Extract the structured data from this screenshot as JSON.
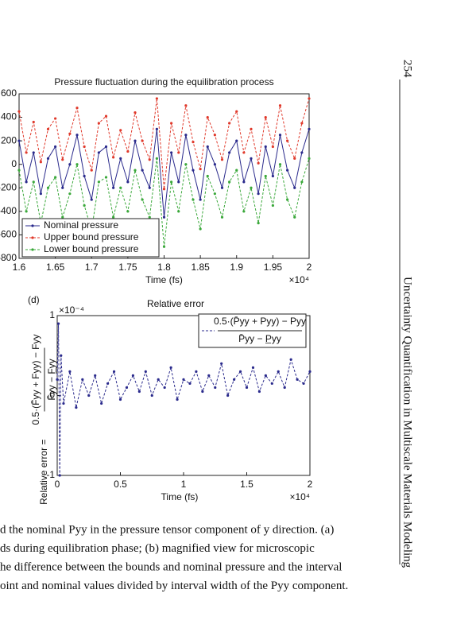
{
  "page_number": "254",
  "running_head": "Uncertainty Quantification in Multiscale Materials Modeling",
  "caption_lines": [
    "d the nominal Pyy in the pressure tensor component of y direction. (a)",
    "ds during equilibration phase; (b) magnified view for microscopic",
    "he difference between the bounds and nominal pressure and the interval",
    "oint and nominal values divided by interval width of the Pyy component."
  ],
  "chart_data": [
    {
      "type": "line",
      "title": "Pressure fluctuation during the equilibration process",
      "xlabel": "Time (fs)",
      "x_multiplier": "×10⁴",
      "x": [
        1.6,
        1.61,
        1.62,
        1.63,
        1.64,
        1.65,
        1.66,
        1.67,
        1.68,
        1.69,
        1.7,
        1.71,
        1.72,
        1.73,
        1.74,
        1.75,
        1.76,
        1.77,
        1.78,
        1.79,
        1.8,
        1.81,
        1.82,
        1.83,
        1.84,
        1.85,
        1.86,
        1.87,
        1.88,
        1.89,
        1.9,
        1.91,
        1.92,
        1.93,
        1.94,
        1.95,
        1.96,
        1.97,
        1.98,
        1.99,
        2.0
      ],
      "series": [
        {
          "name": "Nominal pressure",
          "color": "#2a2a8c",
          "dash": false,
          "values": [
            200,
            -150,
            100,
            -250,
            50,
            150,
            -200,
            0,
            250,
            -100,
            -300,
            100,
            150,
            -200,
            50,
            -150,
            200,
            -50,
            -200,
            300,
            -450,
            100,
            -150,
            250,
            -50,
            -300,
            150,
            0,
            -200,
            100,
            200,
            -150,
            50,
            -250,
            150,
            -100,
            250,
            -50,
            -200,
            100,
            300
          ]
        },
        {
          "name": "Upper bound pressure",
          "color": "#e0392b",
          "dash": true,
          "values": [
            450,
            100,
            360,
            20,
            300,
            390,
            40,
            260,
            480,
            150,
            -50,
            350,
            410,
            60,
            290,
            110,
            440,
            200,
            40,
            560,
            -210,
            350,
            100,
            500,
            190,
            -40,
            400,
            250,
            40,
            350,
            450,
            100,
            300,
            10,
            400,
            150,
            500,
            200,
            50,
            350,
            560
          ]
        },
        {
          "name": "Lower bound pressure",
          "color": "#3aa83a",
          "dash": true,
          "values": [
            -50,
            -400,
            -150,
            -500,
            -200,
            -110,
            -450,
            -250,
            0,
            -350,
            -560,
            -150,
            -110,
            -450,
            -200,
            -400,
            -50,
            -300,
            -450,
            50,
            -700,
            -150,
            -400,
            0,
            -300,
            -550,
            -100,
            -250,
            -450,
            -150,
            -50,
            -400,
            -200,
            -500,
            -100,
            -350,
            0,
            -300,
            -450,
            -150,
            50
          ]
        }
      ],
      "xlim": [
        1.6,
        2
      ],
      "xticks": [
        1.6,
        1.65,
        1.7,
        1.75,
        1.8,
        1.85,
        1.9,
        1.95,
        2
      ],
      "ylim": [
        -800,
        600
      ],
      "yticks": [
        -800,
        -600,
        -400,
        -200,
        0,
        200,
        400,
        600
      ],
      "legend": "lower left"
    },
    {
      "type": "line",
      "panel_label": "(d)",
      "title": "Relative error",
      "xlabel": "Time (fs)",
      "x_multiplier": "×10⁴",
      "y_multiplier": "×10⁻⁴",
      "ylabel": "Relative error =",
      "ylabel_numerator": "0.5·(F̄yy + Fyy) − Fyy",
      "ylabel_denominator": "F̄yy − F̲yy",
      "legend_numerator": "0.5·(P̄yy + Pyy) − Pyy",
      "legend_denominator": "P̄yy − P̲yy",
      "x": [
        0,
        0.01,
        0.02,
        0.03,
        0.05,
        0.1,
        0.15,
        0.2,
        0.25,
        0.3,
        0.35,
        0.4,
        0.45,
        0.5,
        0.55,
        0.6,
        0.65,
        0.7,
        0.75,
        0.8,
        0.85,
        0.9,
        0.95,
        1,
        1.05,
        1.1,
        1.15,
        1.2,
        1.25,
        1.3,
        1.35,
        1.4,
        1.45,
        1.5,
        1.55,
        1.6,
        1.65,
        1.7,
        1.75,
        1.8,
        1.85,
        1.9,
        1.95,
        2
      ],
      "series": [
        {
          "color": "#2a2a8c",
          "dash": true,
          "values": [
            0.2,
            0.9,
            -1,
            0.5,
            -0.1,
            0.3,
            -0.15,
            0.2,
            0,
            0.25,
            -0.1,
            0.15,
            0.3,
            -0.05,
            0.1,
            0.25,
            0.05,
            0.3,
            0,
            0.2,
            0.1,
            0.35,
            -0.05,
            0.2,
            0.15,
            0.3,
            0.05,
            0.25,
            0.1,
            0.4,
            0,
            0.2,
            0.3,
            0.1,
            0.35,
            0.05,
            0.25,
            0.15,
            0.3,
            0.1,
            0.45,
            0.2,
            0.15,
            0.3
          ]
        }
      ],
      "xlim": [
        0,
        2
      ],
      "xticks": [
        0,
        0.5,
        1,
        1.5,
        2
      ],
      "ylim": [
        -1,
        1
      ],
      "yticks": [
        -1,
        0,
        1
      ]
    }
  ]
}
